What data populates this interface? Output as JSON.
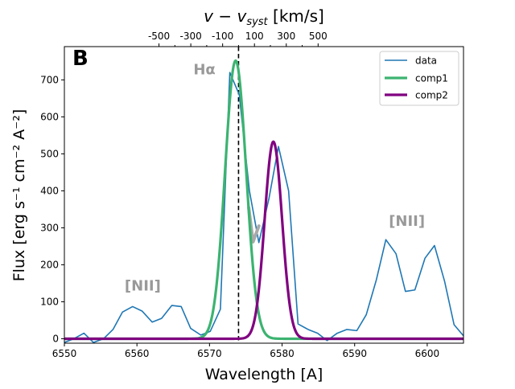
{
  "chart_data": {
    "type": "line",
    "panel_label": "B",
    "xlabel": "Wavelength [A]",
    "ylabel": "Flux [erg s⁻¹ cm⁻² A⁻²]",
    "xlim": [
      6550,
      6605
    ],
    "ylim": [
      -12,
      790
    ],
    "x_ticks": [
      6550,
      6560,
      6570,
      6580,
      6590,
      6600
    ],
    "y_ticks": [
      0,
      100,
      200,
      300,
      400,
      500,
      600,
      700
    ],
    "top_axis": {
      "label": "v − v_syst [km/s]",
      "label_main": "v − v",
      "label_sub": "syst",
      "label_unit": " [km/s]",
      "ticks": [
        -500,
        -300,
        -100,
        100,
        300,
        500
      ],
      "tick_labels": [
        "-500",
        "-300",
        "-100",
        "100",
        "300",
        "500"
      ],
      "minor_ticks": [
        -400,
        -200,
        0,
        200,
        400
      ],
      "reference_wavelength": 6574
    },
    "vline_x": 6574,
    "legend_position": "upper-right",
    "series": [
      {
        "name": "data",
        "color": "#1f77b4",
        "x": [
          6550,
          6551.3,
          6552.7,
          6554,
          6555.4,
          6556.7,
          6558,
          6559.4,
          6560.7,
          6562.1,
          6563.4,
          6564.8,
          6566.1,
          6567.4,
          6568.8,
          6570.1,
          6571.5,
          6572.8,
          6574.1,
          6575.5,
          6576.8,
          6578.2,
          6579.5,
          6580.9,
          6582.2,
          6583.6,
          6584.9,
          6586.2,
          6587.6,
          6588.9,
          6590.3,
          6591.6,
          6593,
          6594.3,
          6595.7,
          6597,
          6598.3,
          6599.7,
          6601,
          6602.4,
          6603.7,
          6605
        ],
        "values": [
          -10,
          0,
          15,
          -10,
          0,
          25,
          72,
          87,
          75,
          45,
          55,
          90,
          87,
          28,
          10,
          20,
          80,
          720,
          660,
          400,
          260,
          380,
          520,
          400,
          40,
          25,
          15,
          -5,
          15,
          25,
          22,
          65,
          160,
          268,
          230,
          128,
          132,
          218,
          252,
          155,
          38,
          8
        ]
      },
      {
        "name": "comp1",
        "color": "#3cb371",
        "amplitude": 752,
        "center": 6573.6,
        "sigma": 1.45
      },
      {
        "name": "comp2",
        "color": "#800080",
        "amplitude": 533,
        "center": 6578.8,
        "sigma": 1.2
      }
    ],
    "highlight": {
      "color": "#a9a9a9",
      "x": [
        6575.4,
        6576,
        6576.8
      ],
      "values": [
        355,
        262,
        305
      ]
    },
    "annotations": [
      {
        "text": "Hα",
        "x": 6569.3,
        "y": 715
      },
      {
        "text": "[NII]",
        "x": 6560.8,
        "y": 130
      },
      {
        "text": "[NII]",
        "x": 6597.2,
        "y": 305
      }
    ]
  }
}
